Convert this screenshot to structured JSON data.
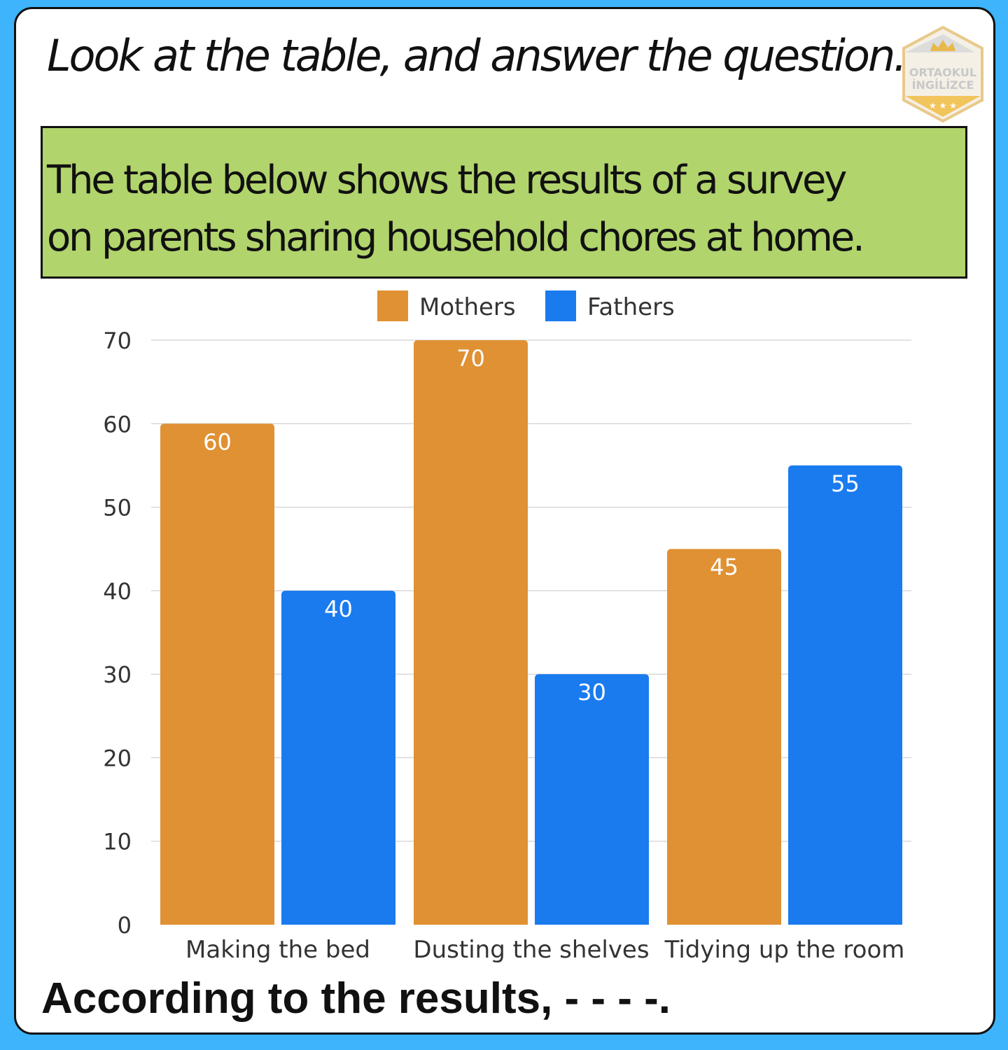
{
  "header": {
    "title": "Look at the table, and answer the question."
  },
  "logo": {
    "line1": "ORTAOKUL",
    "line2": "İNGİLİZCE",
    "icon": "crown-icon",
    "color": "#f5d58a"
  },
  "banner": {
    "line1": "The table below shows the results of a survey",
    "line2": "on parents sharing household chores at home.",
    "color": "#b1d46c"
  },
  "chart_data": {
    "type": "bar",
    "categories": [
      "Making the bed",
      "Dusting the shelves",
      "Tidying up the room"
    ],
    "series": [
      {
        "name": "Mothers",
        "values": [
          60,
          70,
          45
        ],
        "color": "#e09133"
      },
      {
        "name": "Fathers",
        "values": [
          40,
          30,
          55
        ],
        "color": "#1a7bef"
      }
    ],
    "title": "",
    "xlabel": "",
    "ylabel": "",
    "ylim": [
      0,
      70
    ],
    "yticks": [
      0,
      10,
      20,
      30,
      40,
      50,
      60,
      70
    ],
    "grid": true,
    "legend": "top-center",
    "data_labels": true
  },
  "question": {
    "text": "According to the results, - - - -."
  }
}
